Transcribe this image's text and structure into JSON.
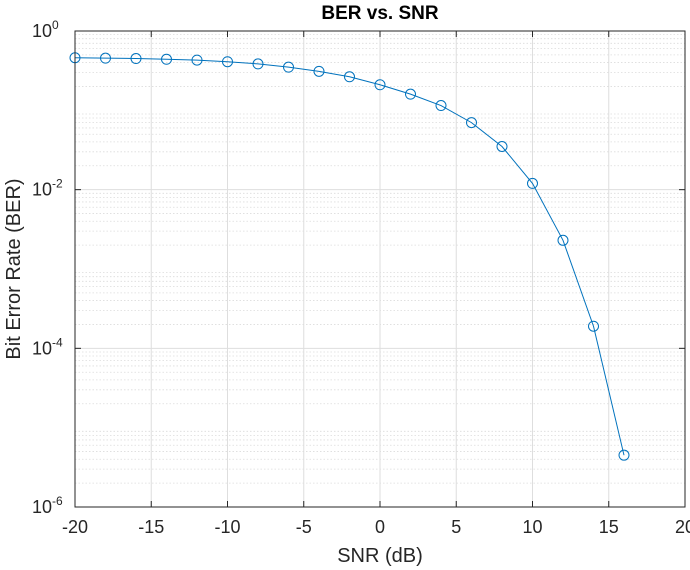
{
  "chart_data": {
    "type": "line",
    "title": "BER vs. SNR",
    "xlabel": "SNR (dB)",
    "ylabel": "Bit Error Rate (BER)",
    "xscale": "linear",
    "yscale": "log",
    "xlim": [
      -20,
      20
    ],
    "ylim": [
      1e-06,
      1
    ],
    "xticks": [
      -20,
      -15,
      -10,
      -5,
      0,
      5,
      10,
      15,
      20
    ],
    "xtick_labels": [
      "-20",
      "-15",
      "-10",
      "-5",
      "0",
      "5",
      "10",
      "15",
      "20"
    ],
    "yticks": [
      1e-06,
      0.0001,
      0.01,
      1
    ],
    "ytick_labels": [
      {
        "base": "10",
        "exp": "-6"
      },
      {
        "base": "10",
        "exp": "-4"
      },
      {
        "base": "10",
        "exp": "-2"
      },
      {
        "base": "10",
        "exp": "0"
      }
    ],
    "grid": true,
    "minor_grid": true,
    "marker": "circle",
    "line_color": "#0072BD",
    "series": [
      {
        "x": [
          -20,
          -18,
          -16,
          -14,
          -12,
          -10,
          -8,
          -6,
          -4,
          -2,
          0,
          2,
          4,
          6,
          8,
          10,
          12,
          14,
          16
        ],
        "y": [
          0.46,
          0.455,
          0.45,
          0.44,
          0.43,
          0.41,
          0.385,
          0.35,
          0.31,
          0.265,
          0.21,
          0.16,
          0.115,
          0.07,
          0.035,
          0.012,
          0.0023,
          0.00019,
          4.5e-06
        ]
      }
    ]
  }
}
